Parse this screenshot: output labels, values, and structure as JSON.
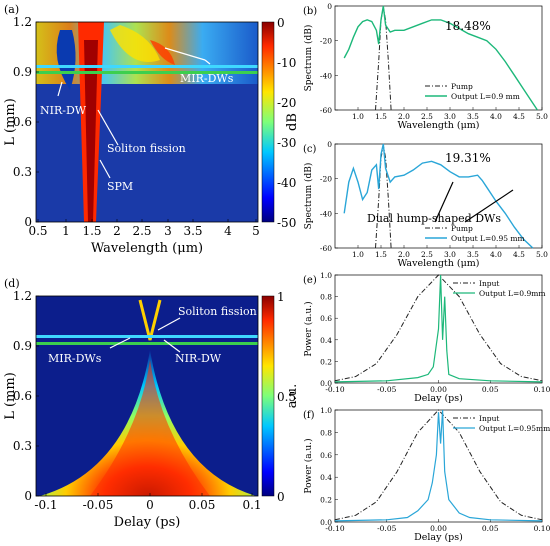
{
  "colors": {
    "green": "#1db87a",
    "blue": "#2aa6d8",
    "pump": "#222222",
    "cyan_line": "#3fd8ff",
    "green_line": "#3ccf4e"
  },
  "chart_data": [
    {
      "panel": "(a)",
      "type": "heatmap",
      "xlabel": "Wavelength (μm)",
      "ylabel": "L (mm)",
      "colorbar_label": "dB",
      "x_ticks": [
        "0.5",
        "1",
        "1.5",
        "2",
        "2.5",
        "3",
        "3.5",
        "4",
        "5"
      ],
      "y_ticks": [
        "0",
        "0.3",
        "0.6",
        "0.9",
        "1.2"
      ],
      "colorbar_ticks": [
        "0",
        "-10",
        "-20",
        "-30",
        "-40",
        "-50"
      ],
      "clim": [
        -50,
        0
      ],
      "ylim": [
        0,
        1.2
      ],
      "marker_lines": [
        0.95,
        0.9
      ],
      "annotations": [
        "NIR-DW",
        "MIR-DWs",
        "Soliton fission",
        "SPM"
      ]
    },
    {
      "panel": "(b)",
      "type": "line",
      "xlabel": "Wavelength (μm)",
      "ylabel": "Spectrum (dB)",
      "xlim": [
        0.5,
        5
      ],
      "ylim": [
        -60,
        0
      ],
      "x_ticks": [
        "1.0",
        "1.5",
        "2.0",
        "2.5",
        "3.0",
        "3.5",
        "4.0",
        "4.5",
        "5.0"
      ],
      "y_ticks": [
        "0",
        "-20",
        "-40",
        "-60"
      ],
      "annotation": "18.48%",
      "legend": [
        "Pump",
        "Output L=0.9 mm"
      ],
      "series": [
        {
          "name": "Pump",
          "x": [
            1.38,
            1.45,
            1.5,
            1.55,
            1.6,
            1.66,
            1.72
          ],
          "y": [
            -60,
            -32,
            -8,
            -1,
            -8,
            -32,
            -60
          ]
        },
        {
          "name": "Output L=0.9 mm",
          "x": [
            0.7,
            0.8,
            0.9,
            1.0,
            1.1,
            1.2,
            1.3,
            1.4,
            1.45,
            1.5,
            1.55,
            1.6,
            1.7,
            1.8,
            2.0,
            2.2,
            2.4,
            2.6,
            2.8,
            3.0,
            3.2,
            3.4,
            3.6,
            3.8,
            4.0,
            4.2,
            4.4,
            4.6,
            4.8,
            4.9
          ],
          "y": [
            -30,
            -25,
            -18,
            -12,
            -9,
            -8,
            -9,
            -14,
            -22,
            -8,
            0,
            -11,
            -15,
            -14,
            -14,
            -12,
            -10,
            -8,
            -8,
            -10,
            -13,
            -16,
            -18,
            -20,
            -25,
            -32,
            -40,
            -48,
            -56,
            -60
          ]
        }
      ]
    },
    {
      "panel": "(c)",
      "type": "line",
      "xlabel": "Wavelength (μm)",
      "ylabel": "Spectrum (dB)",
      "xlim": [
        0.5,
        5
      ],
      "ylim": [
        -60,
        0
      ],
      "x_ticks": [
        "1.0",
        "1.5",
        "2.0",
        "2.5",
        "3.0",
        "3.5",
        "4.0",
        "4.5",
        "5.0"
      ],
      "y_ticks": [
        "0",
        "-20",
        "-40",
        "-60"
      ],
      "annotation": "19.31%",
      "annotation2": "Dual hump-shaped DWs",
      "legend": [
        "Pump",
        "Output L=0.95 mm"
      ],
      "series": [
        {
          "name": "Pump",
          "x": [
            1.38,
            1.45,
            1.5,
            1.55,
            1.6,
            1.66,
            1.72
          ],
          "y": [
            -60,
            -32,
            -8,
            -1,
            -8,
            -32,
            -60
          ]
        },
        {
          "name": "Output L=0.95 mm",
          "x": [
            0.7,
            0.8,
            0.9,
            1.0,
            1.1,
            1.2,
            1.3,
            1.4,
            1.45,
            1.5,
            1.55,
            1.6,
            1.7,
            1.8,
            2.0,
            2.2,
            2.4,
            2.6,
            2.8,
            3.0,
            3.2,
            3.4,
            3.6,
            3.7,
            3.8,
            4.0,
            4.2,
            4.4,
            4.6,
            4.8
          ],
          "y": [
            -40,
            -22,
            -14,
            -22,
            -32,
            -28,
            -15,
            -12,
            -26,
            -6,
            0,
            -14,
            -22,
            -19,
            -18,
            -15,
            -11,
            -10,
            -12,
            -16,
            -19,
            -19,
            -18,
            -21,
            -25,
            -33,
            -40,
            -48,
            -55,
            -60
          ]
        }
      ]
    },
    {
      "panel": "(d)",
      "type": "heatmap",
      "xlabel": "Delay (ps)",
      "ylabel": "L (mm)",
      "colorbar_label": "a.u.",
      "x_ticks": [
        "-0.1",
        "-0.05",
        "0",
        "0.05",
        "0.1"
      ],
      "y_ticks": [
        "0",
        "0.3",
        "0.6",
        "0.9",
        "1.2"
      ],
      "colorbar_ticks": [
        "1",
        "0.5",
        "0"
      ],
      "clim": [
        0,
        1
      ],
      "ylim": [
        0,
        1.2
      ],
      "marker_lines": [
        0.95,
        0.9
      ],
      "annotations": [
        "Soliton fission",
        "MIR-DWs",
        "NIR-DW"
      ]
    },
    {
      "panel": "(e)",
      "type": "line",
      "xlabel": "Delay (ps)",
      "ylabel": "Power (a.u.)",
      "xlim": [
        -0.1,
        0.1
      ],
      "ylim": [
        0,
        1
      ],
      "x_ticks": [
        "-0.10",
        "-0.05",
        "0.00",
        "0.05",
        "0.10"
      ],
      "y_ticks": [
        "0.0",
        "0.2",
        "0.4",
        "0.6",
        "0.8",
        "1.0"
      ],
      "legend": [
        "Input",
        "Output L=0.9mm"
      ],
      "series": [
        {
          "name": "Input",
          "x": [
            -0.1,
            -0.08,
            -0.06,
            -0.04,
            -0.02,
            0,
            0.02,
            0.04,
            0.06,
            0.08,
            0.1
          ],
          "y": [
            0.02,
            0.06,
            0.18,
            0.45,
            0.8,
            1.0,
            0.8,
            0.45,
            0.18,
            0.06,
            0.02
          ]
        },
        {
          "name": "Output L=0.9mm",
          "x": [
            -0.1,
            -0.05,
            -0.02,
            -0.01,
            -0.005,
            0,
            0.002,
            0.004,
            0.006,
            0.008,
            0.01,
            0.02,
            0.05,
            0.1
          ],
          "y": [
            0.01,
            0.02,
            0.05,
            0.08,
            0.15,
            0.5,
            1.0,
            0.4,
            0.8,
            0.3,
            0.08,
            0.04,
            0.02,
            0.01
          ]
        }
      ]
    },
    {
      "panel": "(f)",
      "type": "line",
      "xlabel": "Delay (ps)",
      "ylabel": "Power (a.u.)",
      "xlim": [
        -0.1,
        0.1
      ],
      "ylim": [
        0,
        1
      ],
      "x_ticks": [
        "-0.10",
        "-0.05",
        "0.00",
        "0.05",
        "0.10"
      ],
      "y_ticks": [
        "0.0",
        "0.2",
        "0.4",
        "0.6",
        "0.8",
        "1.0"
      ],
      "legend": [
        "Input",
        "Output L=0.95mm"
      ],
      "series": [
        {
          "name": "Input",
          "x": [
            -0.1,
            -0.08,
            -0.06,
            -0.04,
            -0.02,
            0,
            0.02,
            0.04,
            0.06,
            0.08,
            0.1
          ],
          "y": [
            0.02,
            0.06,
            0.18,
            0.45,
            0.8,
            1.0,
            0.8,
            0.45,
            0.18,
            0.06,
            0.02
          ]
        },
        {
          "name": "Output L=0.95mm",
          "x": [
            -0.1,
            -0.05,
            -0.03,
            -0.02,
            -0.01,
            -0.006,
            -0.002,
            0,
            0.002,
            0.004,
            0.006,
            0.01,
            0.02,
            0.03,
            0.05,
            0.1
          ],
          "y": [
            0.01,
            0.02,
            0.04,
            0.1,
            0.2,
            0.35,
            0.6,
            0.98,
            0.7,
            1.0,
            0.45,
            0.2,
            0.08,
            0.04,
            0.02,
            0.01
          ]
        }
      ]
    }
  ]
}
